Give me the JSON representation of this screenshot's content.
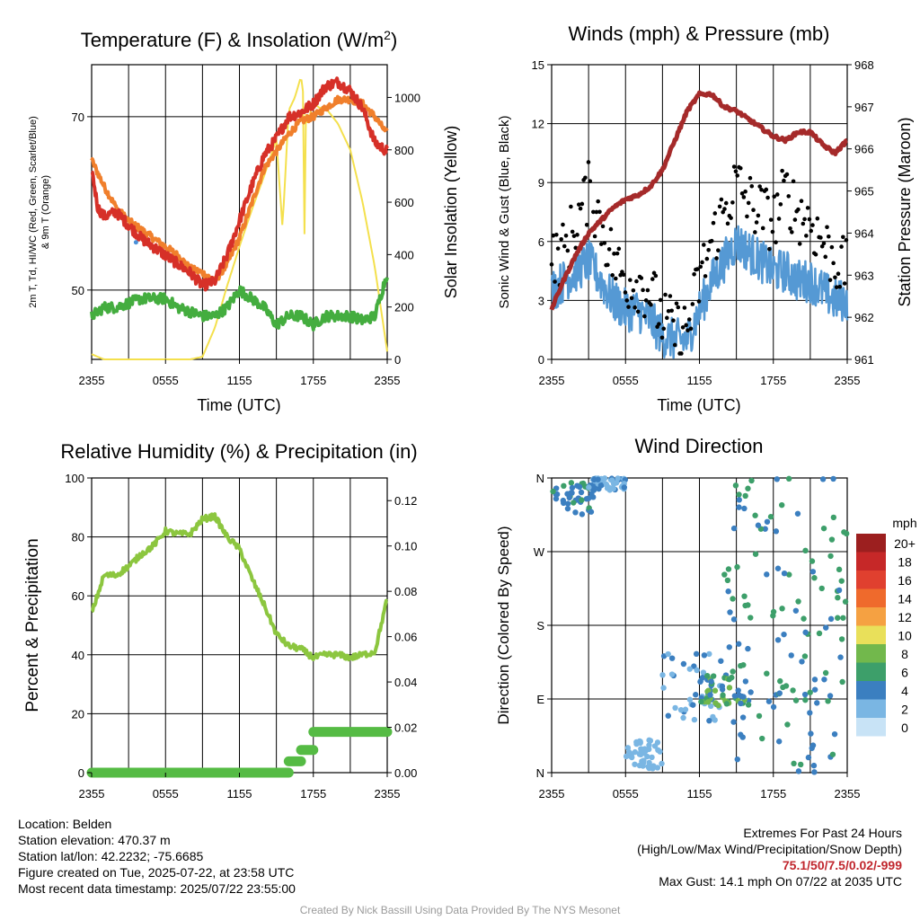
{
  "chart_data": [
    {
      "type": "line",
      "title": "Temperature (F) & Insolation (W/m²)",
      "ylabel_left": "2m T, Td, HI/WC (Red, Green, Scarlet/Blue) & 9m T (Orange)",
      "ylabel_right": "Solar Insolation (Yellow)",
      "xlabel": "Time (UTC)",
      "x_ticks": [
        "2355",
        "0555",
        "1155",
        "1755",
        "2355"
      ],
      "y_left_ticks": [
        50,
        70
      ],
      "ylim_left": [
        42,
        76
      ],
      "y_right_ticks": [
        0,
        200,
        400,
        600,
        800,
        1000
      ],
      "ylim_right": [
        0,
        1125
      ],
      "grid": true,
      "series": [
        {
          "color": "#d63028",
          "axis": "left",
          "x": [
            0,
            0.5,
            1,
            2,
            3,
            4,
            5,
            6,
            7,
            8,
            9,
            10,
            11,
            12,
            13,
            14,
            15,
            16,
            17,
            18,
            19,
            20,
            21,
            22,
            23,
            24
          ],
          "values": [
            64,
            59.5,
            58.5,
            59,
            57.5,
            56,
            55,
            54,
            53,
            52,
            50.5,
            51,
            54,
            58,
            62,
            65.5,
            67.5,
            70,
            70.5,
            71.5,
            73.5,
            74,
            73,
            71,
            67,
            66
          ]
        },
        {
          "color": "#f07f2c",
          "axis": "left",
          "x": [
            0,
            1,
            2,
            3,
            4,
            5,
            6,
            7,
            8,
            9,
            10,
            11,
            12,
            13,
            14,
            15,
            16,
            17,
            18,
            19,
            20,
            21,
            22,
            23,
            24
          ],
          "values": [
            65,
            62,
            59.5,
            58,
            57,
            56,
            55,
            54,
            52.5,
            52,
            51,
            53,
            56,
            60,
            64,
            66,
            68,
            69.5,
            70,
            71,
            72,
            72,
            71.5,
            70,
            68
          ]
        },
        {
          "color": "#44ad3f",
          "axis": "left",
          "x": [
            0,
            1,
            2,
            3,
            4,
            5,
            6,
            7,
            8,
            9,
            10,
            11,
            12,
            13,
            14,
            15,
            16,
            17,
            18,
            19,
            20,
            21,
            22,
            23,
            24
          ],
          "values": [
            47,
            48,
            48,
            48.5,
            49,
            49,
            49,
            48,
            47.5,
            47,
            47,
            48,
            50,
            49,
            48,
            46,
            47,
            47,
            46,
            47,
            47,
            47,
            46.5,
            47,
            52
          ]
        },
        {
          "color": "#f4e04d",
          "axis": "right",
          "x": [
            0,
            1,
            2,
            3,
            4,
            5,
            6,
            7,
            8,
            9,
            10,
            11,
            12,
            13,
            14,
            15,
            15.5,
            16,
            16.5,
            17,
            17.5,
            18,
            18.5,
            19,
            20,
            21,
            22,
            23,
            24
          ],
          "values": [
            20,
            0,
            0,
            0,
            0,
            0,
            0,
            0,
            0,
            10,
            120,
            280,
            430,
            570,
            700,
            840,
            500,
            950,
            1000,
            1080,
            900,
            980,
            960,
            960,
            900,
            800,
            600,
            350,
            30
          ]
        }
      ],
      "markers": [
        {
          "x": 3.6,
          "value": 55.5,
          "color": "#4a90d9",
          "axis": "left"
        }
      ]
    },
    {
      "type": "line",
      "title": "Winds (mph) & Pressure (mb)",
      "ylabel_left": "Sonic Wind & Gust (Blue, Black)",
      "ylabel_right": "Station Pressure (Maroon)",
      "xlabel": "Time (UTC)",
      "x_ticks": [
        "2355",
        "0555",
        "1155",
        "1755",
        "2355"
      ],
      "y_left_ticks": [
        0,
        3,
        6,
        9,
        12,
        15
      ],
      "ylim_left": [
        0,
        15
      ],
      "y_right_ticks": [
        961,
        962,
        963,
        964,
        965,
        966,
        967,
        968
      ],
      "ylim_right": [
        961,
        968
      ],
      "grid": true,
      "series": [
        {
          "name": "Sonic Wind",
          "color": "#5599d4",
          "axis": "left",
          "x": [
            0,
            1,
            2,
            3,
            4,
            5,
            6,
            7,
            8,
            9,
            10,
            11,
            12,
            13,
            14,
            15,
            16,
            17,
            18,
            19,
            20,
            21,
            22,
            23,
            24
          ],
          "values": [
            3.5,
            4,
            4.5,
            5,
            4,
            3,
            2.5,
            2.5,
            2,
            1.2,
            1,
            1,
            2.5,
            4,
            5,
            6,
            5.5,
            5,
            4.5,
            4.5,
            4,
            4,
            3.5,
            3,
            3
          ]
        },
        {
          "name": "Gust",
          "color": "#000000",
          "axis": "left",
          "x": [
            0,
            1,
            2,
            3,
            4,
            5,
            6,
            7,
            8,
            9,
            10,
            11,
            12,
            13,
            14,
            15,
            16,
            17,
            18,
            19,
            20,
            21,
            22,
            23,
            24
          ],
          "values": [
            5,
            5.5,
            7,
            8.5,
            7,
            5,
            4,
            4,
            3.5,
            2,
            1.5,
            1.5,
            4,
            6,
            7.5,
            9,
            8,
            7.5,
            7,
            8.5,
            7.5,
            7,
            6,
            5,
            4.5
          ]
        },
        {
          "name": "Station Pressure",
          "color": "#a52a2a",
          "axis": "right",
          "x": [
            0,
            1,
            2,
            3,
            4,
            5,
            6,
            7,
            8,
            9,
            10,
            11,
            12,
            13,
            14,
            15,
            16,
            17,
            18,
            19,
            20,
            21,
            22,
            23,
            24
          ],
          "values": [
            962.2,
            962.9,
            963.5,
            964.0,
            964.3,
            964.6,
            964.8,
            964.9,
            965.1,
            965.5,
            966.2,
            966.9,
            967.3,
            967.3,
            967.0,
            966.9,
            966.7,
            966.5,
            966.3,
            966.2,
            966.4,
            966.4,
            966.1,
            965.9,
            966.2
          ]
        }
      ]
    },
    {
      "type": "line",
      "title": "Relative Humidity (%) & Precipitation (in)",
      "ylabel_left": "Percent & Precipitation",
      "x_ticks": [
        "2355",
        "0555",
        "1155",
        "1755",
        "2355"
      ],
      "y_left_ticks": [
        0,
        20,
        40,
        60,
        80,
        100
      ],
      "ylim_left": [
        0,
        100
      ],
      "y_right_ticks": [
        "0.00",
        "0.02",
        "0.04",
        "0.06",
        "0.08",
        "0.10",
        "0.12"
      ],
      "ylim_right": [
        0,
        0.13
      ],
      "grid": true,
      "series": [
        {
          "name": "Relative Humidity",
          "color": "#8cc63f",
          "axis": "left",
          "x": [
            0,
            1,
            2,
            3,
            4,
            5,
            6,
            7,
            8,
            9,
            10,
            11,
            12,
            13,
            14,
            15,
            16,
            17,
            18,
            19,
            20,
            21,
            22,
            23,
            24
          ],
          "values": [
            54,
            67,
            67,
            70,
            74,
            77,
            82,
            81,
            81,
            86,
            87,
            80,
            76,
            66,
            57,
            47,
            43,
            42,
            39,
            40,
            40,
            39,
            40,
            41,
            59
          ]
        },
        {
          "name": "Precipitation",
          "color": "#55bb44",
          "axis": "right",
          "x": [
            0,
            16,
            16,
            17,
            17,
            18,
            18,
            24
          ],
          "values": [
            0,
            0,
            0.005,
            0.005,
            0.01,
            0.01,
            0.018,
            0.018
          ]
        }
      ]
    },
    {
      "type": "scatter",
      "title": "Wind Direction",
      "ylabel": "Direction (Colored By Speed)",
      "x_ticks": [
        "2355",
        "0555",
        "1155",
        "1755",
        "2355"
      ],
      "y_ticks": [
        "N",
        "E",
        "S",
        "W",
        "N"
      ],
      "ylim": [
        0,
        360
      ],
      "grid": true,
      "legend_title": "mph",
      "legend_labels": [
        "20+",
        "18",
        "16",
        "14",
        "12",
        "10",
        "8",
        "6",
        "4",
        "2",
        "0"
      ],
      "legend_colors": [
        "#9c1f1f",
        "#c62828",
        "#e0402f",
        "#ef6a2c",
        "#f5a142",
        "#e9e05a",
        "#72b84c",
        "#3d9f6a",
        "#3b7fc0",
        "#7ab6e3",
        "#c8e3f6"
      ],
      "clusters": [
        {
          "x_range": [
            0,
            3.5
          ],
          "dir_range": [
            315,
            355
          ],
          "speeds": [
            3,
            4,
            5
          ]
        },
        {
          "x_range": [
            3,
            6
          ],
          "dir_range": [
            345,
            360
          ],
          "speeds": [
            1,
            2,
            3
          ]
        },
        {
          "x_range": [
            6,
            9
          ],
          "dir_range": [
            5,
            40
          ],
          "speeds": [
            1,
            2
          ]
        },
        {
          "x_range": [
            9,
            14
          ],
          "dir_range": [
            60,
            150
          ],
          "speeds": [
            1,
            2,
            3,
            4
          ]
        },
        {
          "x_range": [
            12,
            16
          ],
          "dir_range": [
            80,
            120
          ],
          "speeds": [
            4,
            5,
            6,
            7
          ]
        },
        {
          "x_range": [
            14,
            24
          ],
          "dir_range": [
            0,
            360
          ],
          "speeds": [
            3,
            4,
            5,
            6
          ]
        }
      ]
    }
  ],
  "info": {
    "location": "Location: Belden",
    "elevation": "Station elevation: 470.37 m",
    "latlon": "Station lat/lon: 42.2232; -75.6685",
    "created": "Figure created on Tue, 2025-07-22, at 23:58 UTC",
    "recent": "Most recent data timestamp: 2025/07/22 23:55:00"
  },
  "extremes": {
    "title": "Extremes For Past 24 Hours",
    "subtitle": "(High/Low/Max Wind/Precipitation/Snow Depth)",
    "values": "75.1/50/7.5/0.02/-999",
    "gust": "Max Gust: 14.1 mph On 07/22 at 2035 UTC"
  },
  "credit": "Created By Nick Bassill Using Data Provided By The NYS Mesonet"
}
